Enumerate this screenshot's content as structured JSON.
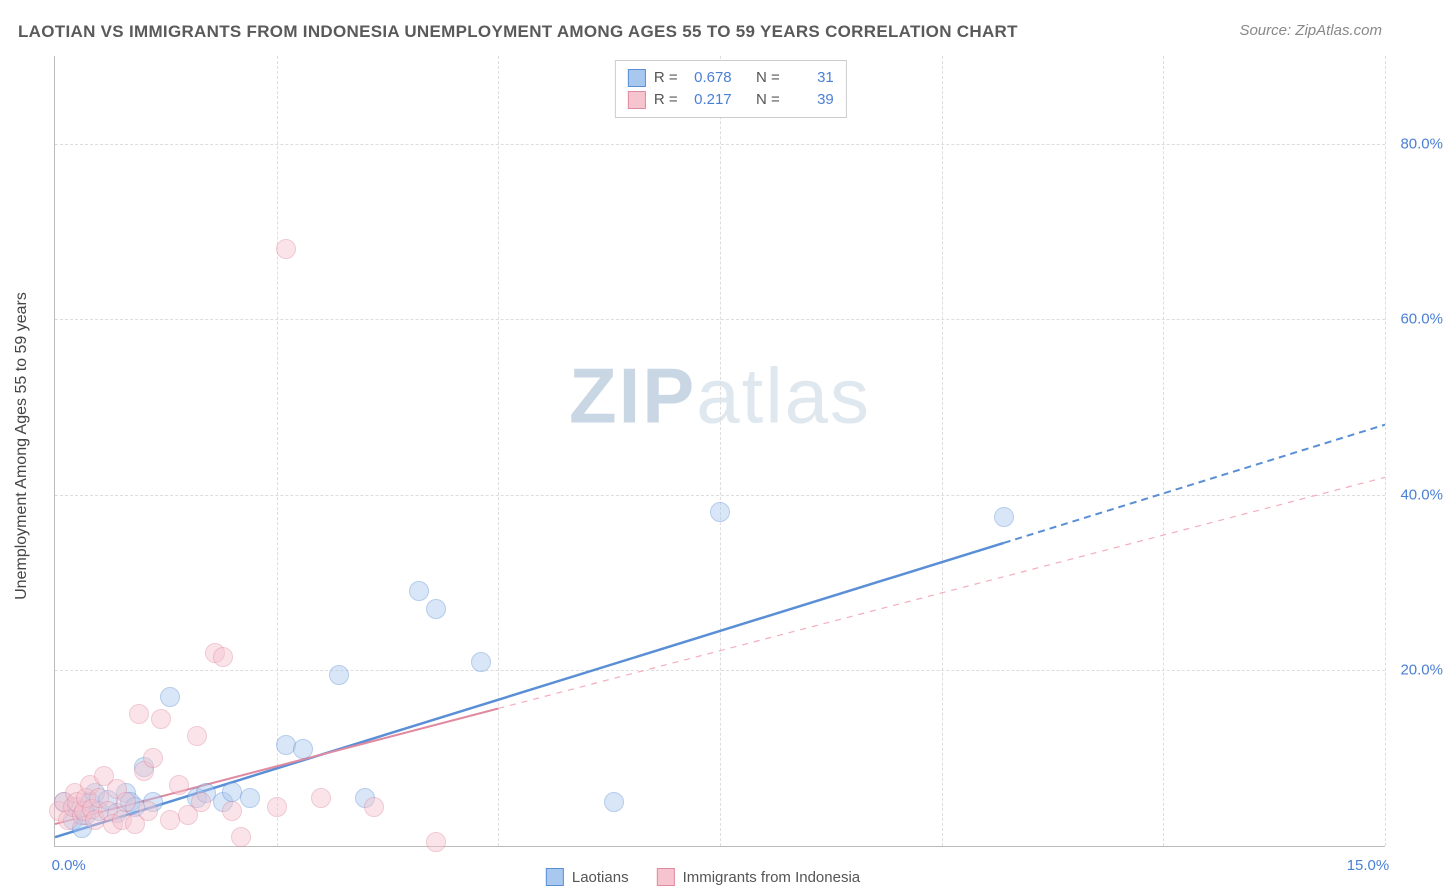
{
  "title": "LAOTIAN VS IMMIGRANTS FROM INDONESIA UNEMPLOYMENT AMONG AGES 55 TO 59 YEARS CORRELATION CHART",
  "source": "Source: ZipAtlas.com",
  "watermark_zip": "ZIP",
  "watermark_atlas": "atlas",
  "chart": {
    "type": "scatter",
    "xlabel": "",
    "ylabel": "Unemployment Among Ages 55 to 59 years",
    "xlim": [
      0,
      15
    ],
    "ylim": [
      0,
      90
    ],
    "xticks": [
      0,
      15
    ],
    "xtick_labels": [
      "0.0%",
      "15.0%"
    ],
    "yticks": [
      20,
      40,
      60,
      80
    ],
    "ytick_labels": [
      "20.0%",
      "40.0%",
      "60.0%",
      "80.0%"
    ],
    "vgrid_positions": [
      2.5,
      5.0,
      7.5,
      10.0,
      12.5,
      15.0
    ],
    "background_color": "#ffffff",
    "grid_color": "#dddddd",
    "axis_color": "#bbbbbb",
    "marker_radius": 9,
    "marker_opacity": 0.45,
    "series": [
      {
        "label": "Laotians",
        "color_fill": "#a9c8ef",
        "color_stroke": "#5a8fd6",
        "R": "0.678",
        "N": "31",
        "trend": {
          "x1": 0,
          "y1": 1.0,
          "x2": 15,
          "y2": 48.0,
          "solid_until_x": 10.7,
          "dash_color": "#5a8fd6"
        },
        "points": [
          [
            0.1,
            5.0
          ],
          [
            0.2,
            3.0
          ],
          [
            0.25,
            4.5
          ],
          [
            0.3,
            2.0
          ],
          [
            0.35,
            3.5
          ],
          [
            0.4,
            5.0
          ],
          [
            0.45,
            6.0
          ],
          [
            0.5,
            4.0
          ],
          [
            0.6,
            5.2
          ],
          [
            0.7,
            3.8
          ],
          [
            0.8,
            6.0
          ],
          [
            0.85,
            5.0
          ],
          [
            0.9,
            4.5
          ],
          [
            1.0,
            9.0
          ],
          [
            1.1,
            5.0
          ],
          [
            1.3,
            17.0
          ],
          [
            1.6,
            5.5
          ],
          [
            1.7,
            6.0
          ],
          [
            1.9,
            5.0
          ],
          [
            2.0,
            6.2
          ],
          [
            2.2,
            5.5
          ],
          [
            2.6,
            11.5
          ],
          [
            2.8,
            11.0
          ],
          [
            3.2,
            19.5
          ],
          [
            3.5,
            5.5
          ],
          [
            4.1,
            29.0
          ],
          [
            4.3,
            27.0
          ],
          [
            4.8,
            21.0
          ],
          [
            6.3,
            5.0
          ],
          [
            7.5,
            38.0
          ],
          [
            10.7,
            37.5
          ]
        ]
      },
      {
        "label": "Immigrants from Indonesia",
        "color_fill": "#f6c4cf",
        "color_stroke": "#e08aa0",
        "R": "0.217",
        "N": "39",
        "trend": {
          "x1": 0,
          "y1": 2.5,
          "x2": 15,
          "y2": 42.0,
          "solid_until_x": 5.0,
          "dash_color": "#f3aebc"
        },
        "points": [
          [
            0.05,
            4.0
          ],
          [
            0.1,
            5.0
          ],
          [
            0.15,
            3.0
          ],
          [
            0.2,
            4.5
          ],
          [
            0.22,
            6.0
          ],
          [
            0.25,
            5.0
          ],
          [
            0.3,
            3.5
          ],
          [
            0.33,
            4.0
          ],
          [
            0.35,
            5.5
          ],
          [
            0.4,
            7.0
          ],
          [
            0.42,
            4.2
          ],
          [
            0.45,
            3.0
          ],
          [
            0.5,
            5.5
          ],
          [
            0.55,
            8.0
          ],
          [
            0.6,
            4.0
          ],
          [
            0.65,
            2.5
          ],
          [
            0.7,
            6.5
          ],
          [
            0.75,
            3.0
          ],
          [
            0.8,
            5.0
          ],
          [
            0.9,
            2.5
          ],
          [
            0.95,
            15.0
          ],
          [
            1.0,
            8.5
          ],
          [
            1.05,
            4.0
          ],
          [
            1.1,
            10.0
          ],
          [
            1.2,
            14.5
          ],
          [
            1.3,
            3.0
          ],
          [
            1.4,
            7.0
          ],
          [
            1.5,
            3.5
          ],
          [
            1.6,
            12.5
          ],
          [
            1.65,
            5.0
          ],
          [
            1.8,
            22.0
          ],
          [
            1.9,
            21.5
          ],
          [
            2.0,
            4.0
          ],
          [
            2.1,
            1.0
          ],
          [
            2.5,
            4.5
          ],
          [
            2.6,
            68.0
          ],
          [
            3.0,
            5.5
          ],
          [
            3.6,
            4.5
          ],
          [
            4.3,
            0.5
          ]
        ]
      }
    ]
  },
  "legend_top_label_R": "R =",
  "legend_top_label_N": "N ="
}
